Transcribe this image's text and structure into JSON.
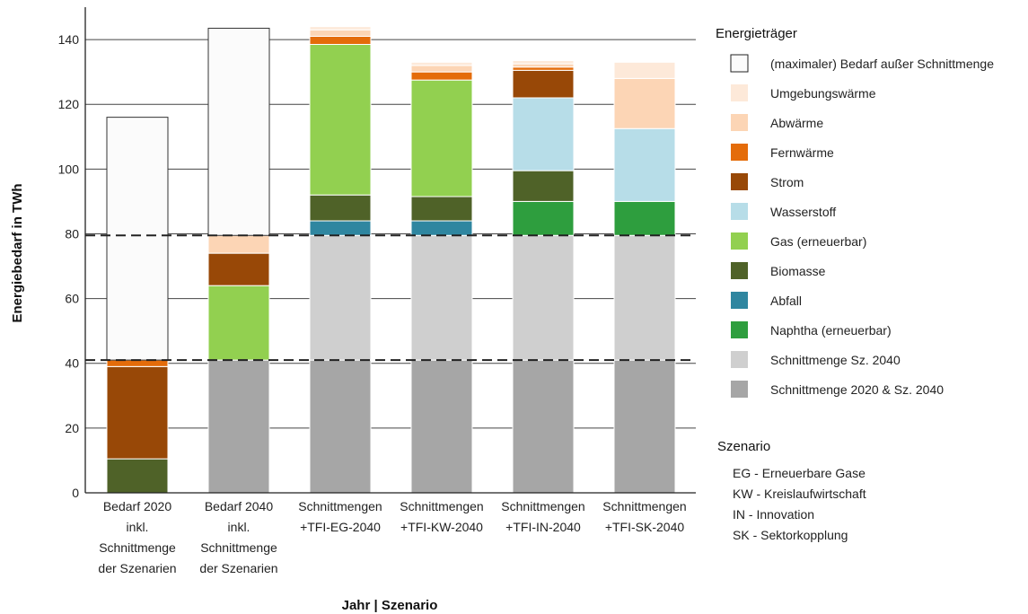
{
  "chart_data": {
    "type": "bar",
    "stacked": true,
    "xlabel": "Jahr | Szenario",
    "ylabel": "Energiebedarf in TWh",
    "ylim": [
      0,
      150
    ],
    "yticks": [
      0,
      20,
      40,
      60,
      80,
      100,
      120,
      140
    ],
    "grid": true,
    "reference_lines": [
      41,
      79.5
    ],
    "categories": [
      [
        "Bedarf 2020",
        "inkl.",
        "Schnittmenge",
        "der Szenarien"
      ],
      [
        "Bedarf 2040",
        "inkl.",
        "Schnittmenge",
        "der Szenarien"
      ],
      [
        "Schnittmengen",
        "+TFI-EG-2040"
      ],
      [
        "Schnittmengen",
        "+TFI-KW-2040"
      ],
      [
        "Schnittmengen",
        "+TFI-IN-2040"
      ],
      [
        "Schnittmengen",
        "+TFI-SK-2040"
      ]
    ],
    "series": [
      {
        "name": "Schnittmenge 2020 & Sz. 2040",
        "color": "#a6a6a6",
        "values": [
          0,
          41,
          41,
          41,
          41,
          41
        ]
      },
      {
        "name": "Schnittmenge Sz. 2040",
        "color": "#cfcfcf",
        "values": [
          0,
          0,
          38.5,
          38.5,
          38.5,
          38.5
        ]
      },
      {
        "name": "Naphtha (erneuerbar)",
        "color": "#2e9e3e",
        "values": [
          0,
          0,
          0,
          0,
          10.5,
          10.5
        ]
      },
      {
        "name": "Abfall",
        "color": "#2f86a0",
        "values": [
          0,
          0,
          4.5,
          4.5,
          0,
          0
        ]
      },
      {
        "name": "Biomasse",
        "color": "#4f6228",
        "values": [
          10.5,
          0,
          8,
          7.5,
          9.5,
          0
        ]
      },
      {
        "name": "Gas (erneuerbar)",
        "color": "#92d050",
        "values": [
          0,
          23,
          46.5,
          36,
          0,
          0
        ]
      },
      {
        "name": "Wasserstoff",
        "color": "#b7dde8",
        "values": [
          0,
          0,
          0,
          0,
          22.5,
          22.5
        ]
      },
      {
        "name": "Strom",
        "color": "#984807",
        "values": [
          28.5,
          10,
          0,
          0,
          8.5,
          0
        ]
      },
      {
        "name": "Fernwärme",
        "color": "#e46c0a",
        "values": [
          2,
          0,
          2.5,
          2.5,
          1,
          0
        ]
      },
      {
        "name": "Abwärme",
        "color": "#fcd5b5",
        "values": [
          0,
          5.5,
          2,
          2,
          1,
          15.5
        ]
      },
      {
        "name": "Umgebungswärme",
        "color": "#fde9d9",
        "values": [
          0,
          0,
          1,
          1,
          1,
          5
        ]
      },
      {
        "name": "(maximaler) Bedarf außer Schnittmenge",
        "color": "#fbfbfb",
        "values": [
          75,
          64,
          0,
          0,
          0,
          0
        ]
      }
    ]
  },
  "legend": {
    "title": "Energieträger",
    "items": [
      {
        "label": "(maximaler) Bedarf außer Schnittmenge",
        "color": "#fbfbfb"
      },
      {
        "label": "Umgebungswärme",
        "color": "#fde9d9"
      },
      {
        "label": "Abwärme",
        "color": "#fcd5b5"
      },
      {
        "label": "Fernwärme",
        "color": "#e46c0a"
      },
      {
        "label": "Strom",
        "color": "#984807"
      },
      {
        "label": "Wasserstoff",
        "color": "#b7dde8"
      },
      {
        "label": "Gas (erneuerbar)",
        "color": "#92d050"
      },
      {
        "label": "Biomasse",
        "color": "#4f6228"
      },
      {
        "label": "Abfall",
        "color": "#2f86a0"
      },
      {
        "label": "Naphtha (erneuerbar)",
        "color": "#2e9e3e"
      },
      {
        "label": "Schnittmenge Sz. 2040",
        "color": "#cfcfcf"
      },
      {
        "label": "Schnittmenge 2020 & Sz. 2040",
        "color": "#a6a6a6"
      }
    ]
  },
  "scenario": {
    "title": "Szenario",
    "items": [
      {
        "code": "EG",
        "text": "Erneuerbare Gase"
      },
      {
        "code": "KW",
        "text": "Kreislaufwirtschaft"
      },
      {
        "code": "IN",
        "text": "Innovation"
      },
      {
        "code": "SK",
        "text": "Sektorkopplung"
      }
    ]
  }
}
